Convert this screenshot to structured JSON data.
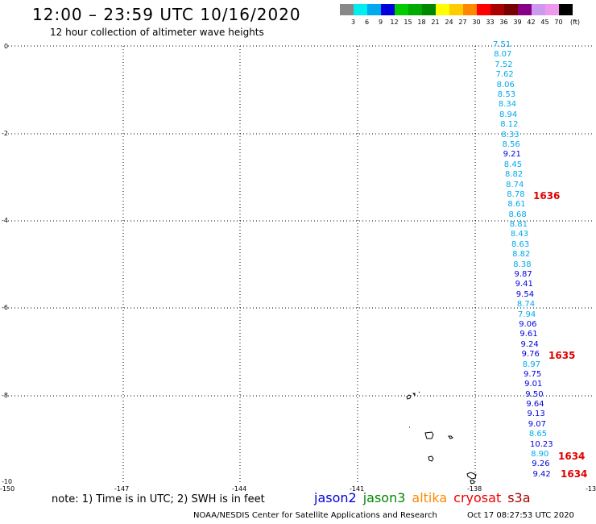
{
  "header": {
    "title": "12:00 – 23:59 UTC 10/16/2020",
    "subtitle": "12 hour collection of altimeter wave heights"
  },
  "color_scale": {
    "labels": [
      "3",
      "6",
      "9",
      "12",
      "15",
      "18",
      "21",
      "24",
      "27",
      "30",
      "33",
      "36",
      "39",
      "42",
      "45",
      "70"
    ],
    "unit": "(ft)",
    "colors": [
      "#888888",
      "#00eeee",
      "#00aaee",
      "#0000dd",
      "#00cc00",
      "#00aa00",
      "#008800",
      "#ffff00",
      "#ffcc00",
      "#ff8800",
      "#ff0000",
      "#aa0000",
      "#770000",
      "#880088",
      "#cc99ee",
      "#ee99ee",
      "#000000"
    ]
  },
  "axes": {
    "y_labels": [
      "0",
      "-2",
      "-4",
      "-6",
      "-8",
      "-10"
    ],
    "x_labels": [
      "-150",
      "-147",
      "-144",
      "-141",
      "-138",
      "-13"
    ]
  },
  "wave_heights": [
    {
      "v": "7.51",
      "c": "#00aaee"
    },
    {
      "v": "8.07",
      "c": "#00aaee"
    },
    {
      "v": "7.52",
      "c": "#00aaee"
    },
    {
      "v": "7.62",
      "c": "#00aaee"
    },
    {
      "v": "8.06",
      "c": "#00aaee"
    },
    {
      "v": "8.53",
      "c": "#00aaee"
    },
    {
      "v": "8.34",
      "c": "#00aaee"
    },
    {
      "v": "8.94",
      "c": "#00aaee"
    },
    {
      "v": "8.12",
      "c": "#00aaee"
    },
    {
      "v": "8.33",
      "c": "#00aaee"
    },
    {
      "v": "8.56",
      "c": "#00aaee"
    },
    {
      "v": "9.21",
      "c": "#0000dd"
    },
    {
      "v": "8.45",
      "c": "#00aaee"
    },
    {
      "v": "8.82",
      "c": "#00aaee"
    },
    {
      "v": "8.74",
      "c": "#00aaee"
    },
    {
      "v": "8.78",
      "c": "#00aaee"
    },
    {
      "v": "8.61",
      "c": "#00aaee"
    },
    {
      "v": "8.68",
      "c": "#00aaee"
    },
    {
      "v": "8.81",
      "c": "#00aaee"
    },
    {
      "v": "8.43",
      "c": "#00aaee"
    },
    {
      "v": "8.63",
      "c": "#00aaee"
    },
    {
      "v": "8.82",
      "c": "#00aaee"
    },
    {
      "v": "8.38",
      "c": "#00aaee"
    },
    {
      "v": "9.87",
      "c": "#0000dd"
    },
    {
      "v": "9.41",
      "c": "#0000dd"
    },
    {
      "v": "9.54",
      "c": "#0000dd"
    },
    {
      "v": "8.74",
      "c": "#00aaee"
    },
    {
      "v": "7.94",
      "c": "#00aaee"
    },
    {
      "v": "9.06",
      "c": "#0000dd"
    },
    {
      "v": "9.61",
      "c": "#0000dd"
    },
    {
      "v": "9.24",
      "c": "#0000dd"
    },
    {
      "v": "9.76",
      "c": "#0000dd"
    },
    {
      "v": "8.97",
      "c": "#00aaee"
    },
    {
      "v": "9.75",
      "c": "#0000dd"
    },
    {
      "v": "9.01",
      "c": "#0000dd"
    },
    {
      "v": "9.50",
      "c": "#0000dd"
    },
    {
      "v": "9.64",
      "c": "#0000dd"
    },
    {
      "v": "9.13",
      "c": "#0000dd"
    },
    {
      "v": "9.07",
      "c": "#0000dd"
    },
    {
      "v": "8.65",
      "c": "#00aaee"
    },
    {
      "v": "10.23",
      "c": "#0000dd"
    },
    {
      "v": "8.90",
      "c": "#00aaee"
    },
    {
      "v": "9.26",
      "c": "#0000dd"
    },
    {
      "v": "9.42",
      "c": "#0000dd"
    }
  ],
  "time_markers": [
    "1636",
    "1635",
    "1634",
    "1634"
  ],
  "footer": {
    "note": "note: 1) Time is in UTC; 2) SWH is in feet",
    "satellites": [
      {
        "name": "jason2",
        "color": "#0000dd"
      },
      {
        "name": "jason3",
        "color": "#008800"
      },
      {
        "name": "altika",
        "color": "#ff8800"
      },
      {
        "name": "cryosat",
        "color": "#ee0000"
      },
      {
        "name": "s3a",
        "color": "#aa0000"
      }
    ],
    "credit": "NOAA/NESDIS Center for Satellite Applications and Research",
    "timestamp": "Oct 17 08:27:53 UTC 2020"
  }
}
